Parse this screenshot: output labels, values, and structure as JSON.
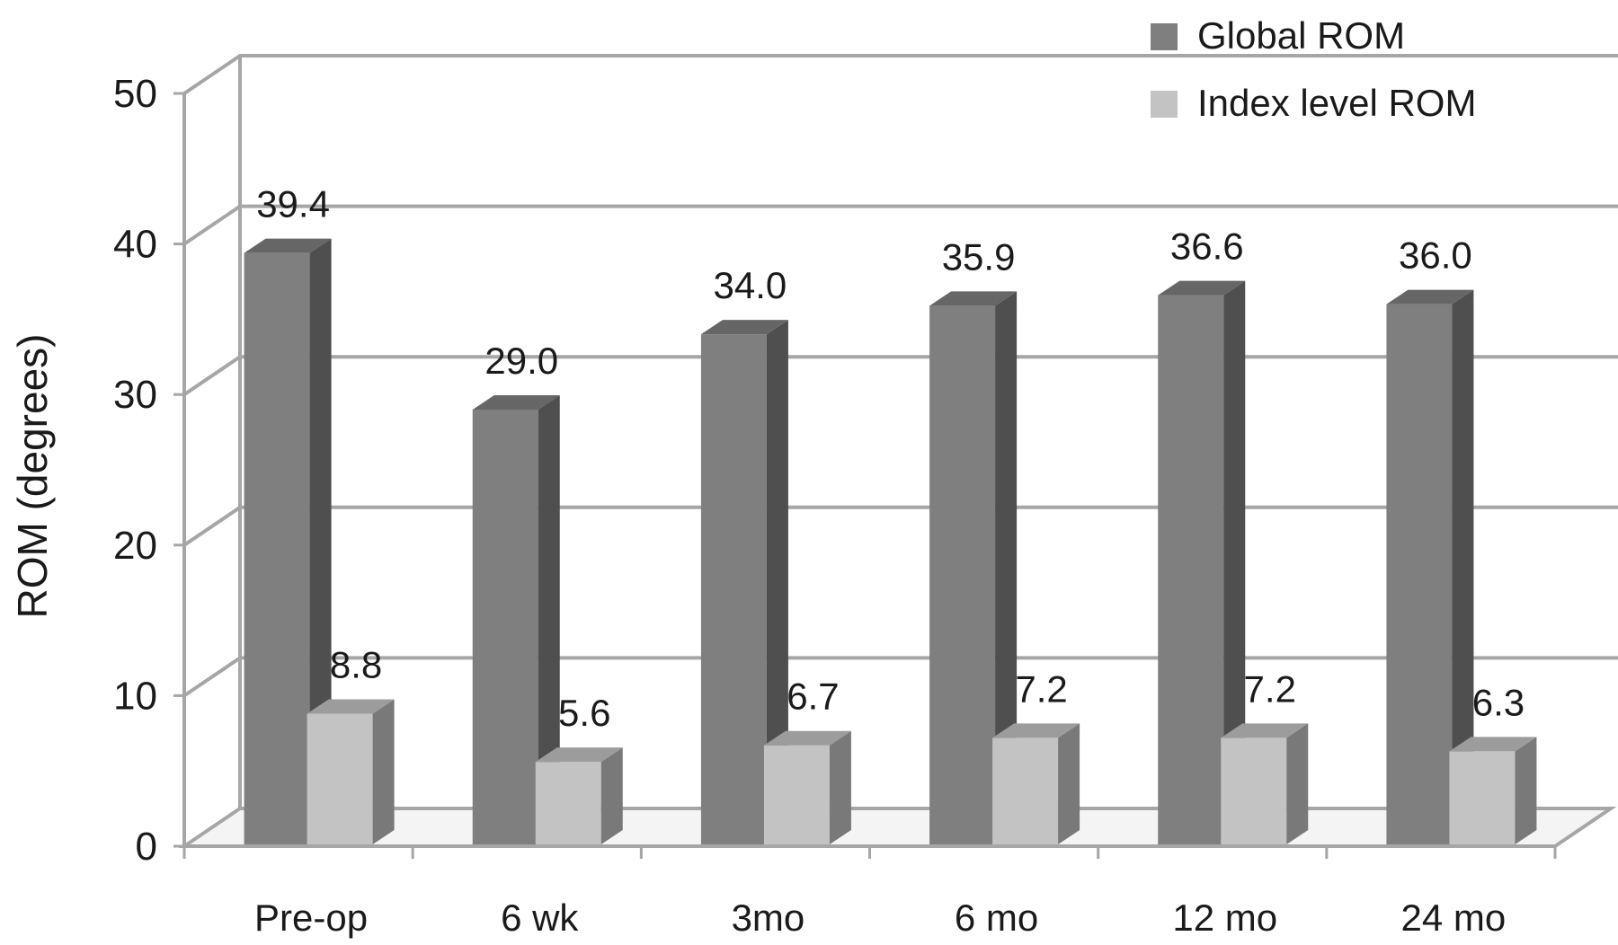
{
  "chart_data": {
    "type": "bar",
    "style": "3d-clustered-column",
    "categories": [
      "Pre-op",
      "6 wk",
      "3mo",
      "6 mo",
      "12 mo",
      "24 mo"
    ],
    "series": [
      {
        "name": "Global ROM",
        "values": [
          39.4,
          29.0,
          34.0,
          35.9,
          36.6,
          36.0
        ],
        "labels": [
          "39.4",
          "29.0",
          "34.0",
          "35.9",
          "36.6",
          "36.0"
        ],
        "color": "#7f7f7f"
      },
      {
        "name": "Index level ROM",
        "values": [
          8.8,
          5.6,
          6.7,
          7.2,
          7.2,
          6.3
        ],
        "labels": [
          "8.8",
          "5.6",
          "6.7",
          "7.2",
          "7.2",
          "6.3"
        ],
        "color": "#c3c3c3"
      }
    ],
    "xlabel": "",
    "ylabel": "ROM (degrees)",
    "ylim": [
      0,
      50
    ],
    "yticks": [
      "0",
      "10",
      "20",
      "30",
      "40",
      "50"
    ],
    "grid": true,
    "legend": "top-right"
  }
}
